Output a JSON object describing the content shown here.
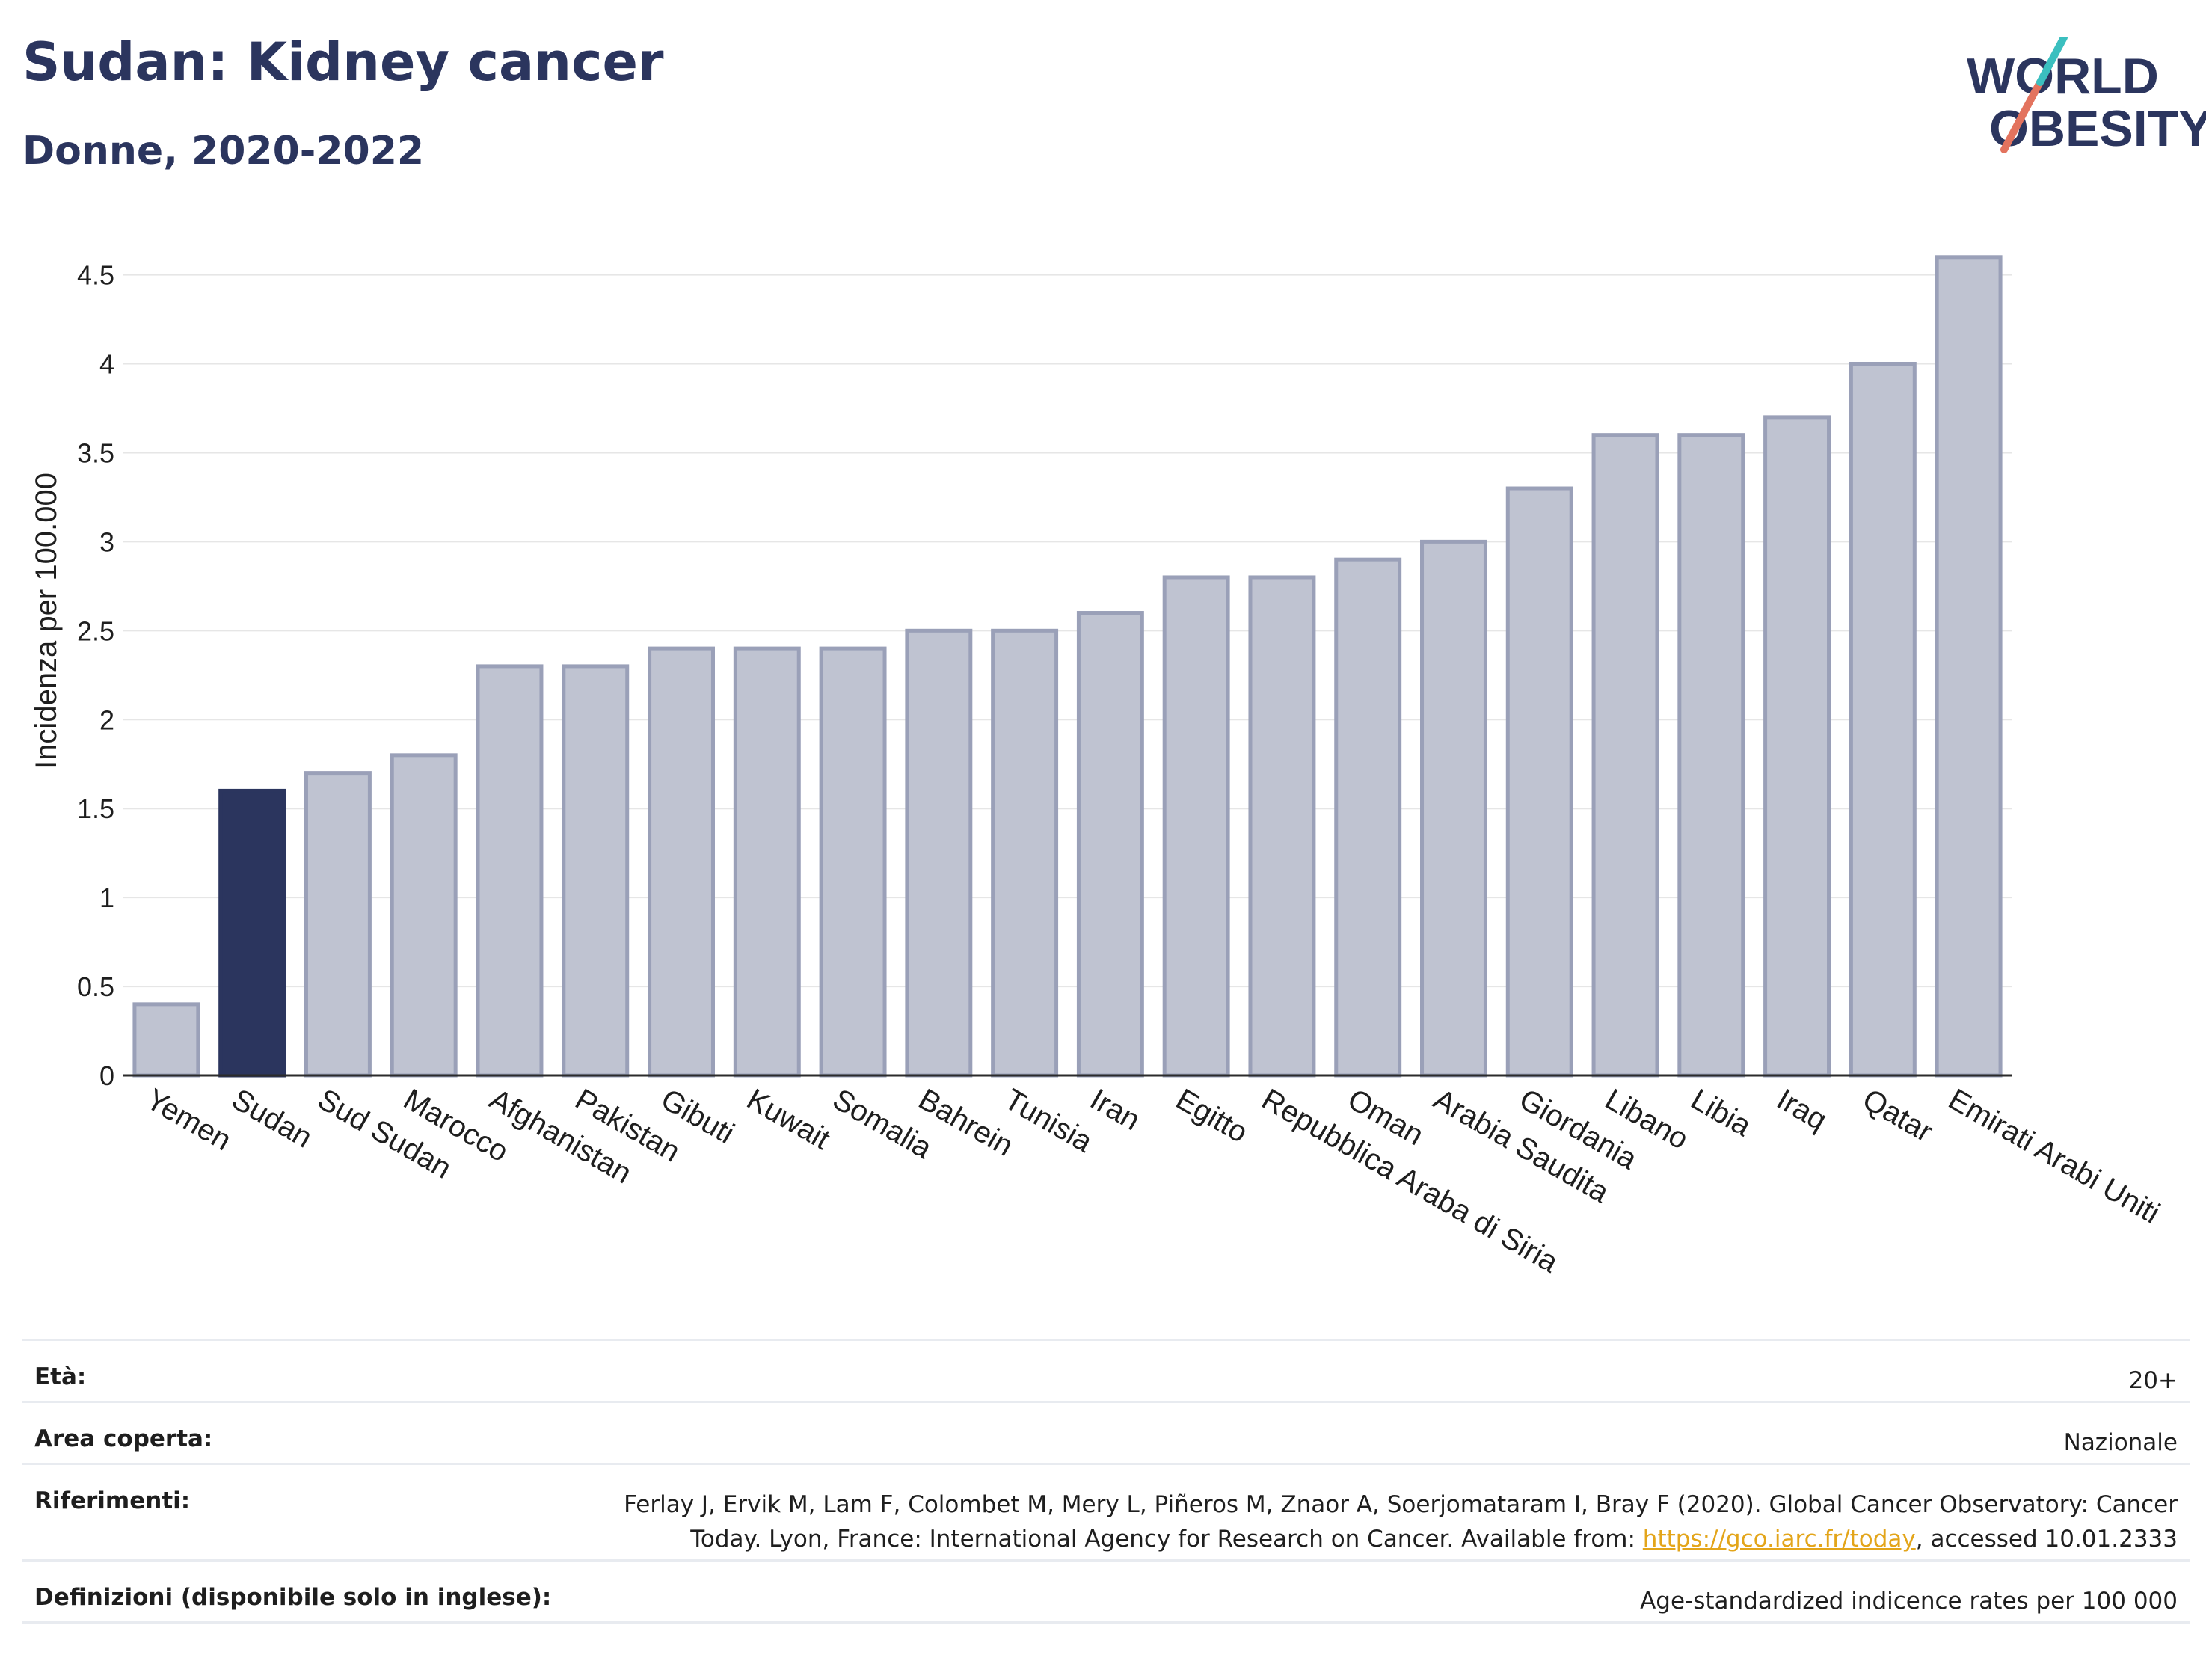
{
  "header": {
    "title": "Sudan: Kidney cancer",
    "subtitle": "Donne, 2020-2022"
  },
  "logo": {
    "line1": "WORLD",
    "line2": "OBESITY"
  },
  "colors": {
    "highlight": "#2b355e",
    "bar_fill": "#bfc3d1",
    "bar_stroke": "#9aa0b8",
    "grid": "#e6e6e6",
    "link": "#e3a51a"
  },
  "chart_data": {
    "type": "bar",
    "ylabel": "Incidenza per 100.000",
    "ylim": [
      0,
      4.7
    ],
    "yticks": [
      0,
      0.5,
      1,
      1.5,
      2,
      2.5,
      3,
      3.5,
      4,
      4.5
    ],
    "ytick_labels": [
      "0",
      "0.5",
      "1",
      "1.5",
      "2",
      "2.5",
      "3",
      "3.5",
      "4",
      "4.5"
    ],
    "grid": true,
    "highlight": "Sudan",
    "categories": [
      "Yemen",
      "Sudan",
      "Sud Sudan",
      "Marocco",
      "Afghanistan",
      "Pakistan",
      "Gibuti",
      "Kuwait",
      "Somalia",
      "Bahrein",
      "Tunisia",
      "Iran",
      "Egitto",
      "Repubblica Araba di Siria",
      "Oman",
      "Arabia Saudita",
      "Giordania",
      "Libano",
      "Libia",
      "Iraq",
      "Qatar",
      "Emirati Arabi Uniti"
    ],
    "values": [
      0.4,
      1.6,
      1.7,
      1.8,
      2.3,
      2.3,
      2.4,
      2.4,
      2.4,
      2.5,
      2.5,
      2.6,
      2.8,
      2.8,
      2.9,
      3.0,
      3.3,
      3.6,
      3.6,
      3.7,
      4.0,
      4.6
    ]
  },
  "meta": {
    "age_label": "Età:",
    "age_value": "20+",
    "area_label": "Area coperta:",
    "area_value": "Nazionale",
    "ref_label": "Riferimenti:",
    "ref_line1": "Ferlay J, Ervik M, Lam F, Colombet M, Mery L, Piñeros M, Znaor A, Soerjomataram I, Bray F (2020). Global Cancer Observatory: Cancer",
    "ref_line2_pre": "Today. Lyon, France: International Agency for Research on Cancer. Available from: ",
    "ref_link": "https://gco.iarc.fr/today",
    "ref_line2_post": ", accessed 10.01.2333",
    "def_label": "Definizioni (disponibile solo in inglese):",
    "def_value": "Age-standardized indicence rates per 100 000"
  }
}
